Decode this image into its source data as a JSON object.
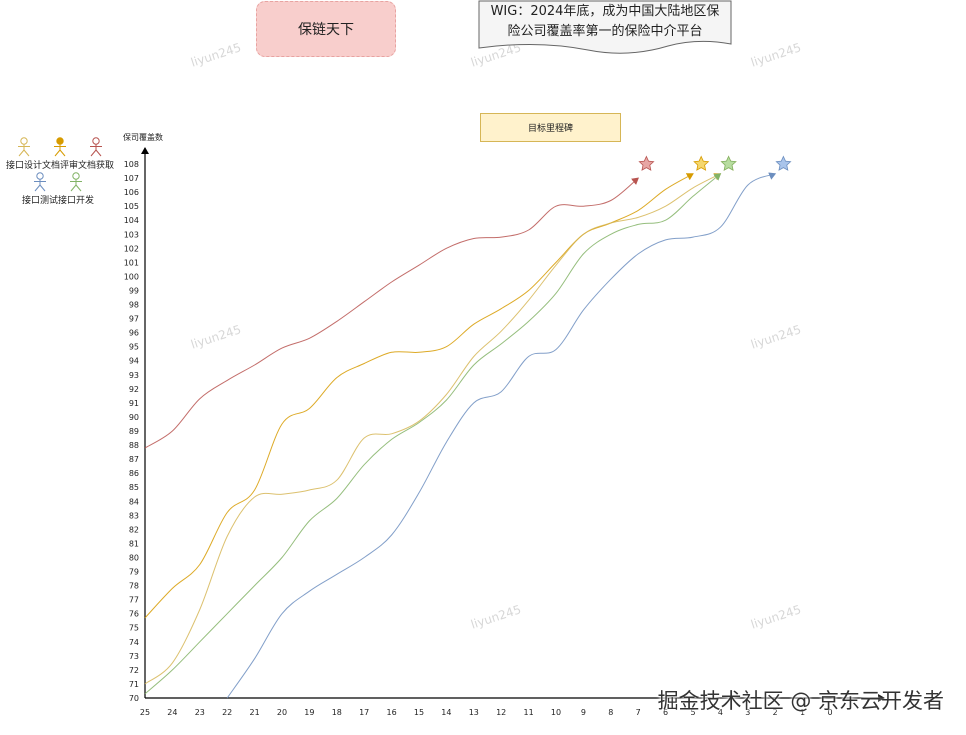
{
  "header": {
    "title": "保链天下",
    "wig_line1": "WIG：2024年底，成为中国大陆地区保",
    "wig_line2": "险公司覆盖率第一的保险中介平台"
  },
  "milestone_label": "目标里程碑",
  "legend": [
    {
      "label": "接口设计",
      "color": "#d6b656"
    },
    {
      "label": "文档评审",
      "color": "#d79b00"
    },
    {
      "label": "文档获取",
      "color": "#b85450"
    },
    {
      "label": "接口测试",
      "color": "#6c8ebf"
    },
    {
      "label": "接口开发",
      "color": "#82b366"
    }
  ],
  "watermark_text": "liyun245",
  "footer_watermark": "掘金技术社区 @ 京东云开发者",
  "chart_data": {
    "type": "line",
    "ylabel": "保司覆盖数",
    "xlabel": "",
    "x_ticks": [
      25,
      24,
      23,
      22,
      21,
      20,
      19,
      18,
      17,
      16,
      15,
      14,
      13,
      12,
      11,
      10,
      9,
      8,
      7,
      6,
      5,
      4,
      3,
      2,
      1,
      0
    ],
    "ylim": [
      70,
      108
    ],
    "series": [
      {
        "name": "文档获取",
        "color": "#b85450",
        "star_color": "#e7a6a4",
        "points": [
          [
            25,
            87.8
          ],
          [
            24,
            89
          ],
          [
            23,
            91.3
          ],
          [
            22,
            92.6
          ],
          [
            21,
            93.7
          ],
          [
            20,
            94.9
          ],
          [
            19,
            95.6
          ],
          [
            18,
            96.8
          ],
          [
            17,
            98.2
          ],
          [
            16,
            99.6
          ],
          [
            15,
            100.8
          ],
          [
            14,
            102
          ],
          [
            13,
            102.7
          ],
          [
            12,
            102.8
          ],
          [
            11,
            103.3
          ],
          [
            10,
            105
          ],
          [
            9,
            105
          ],
          [
            8,
            105.4
          ],
          [
            7,
            107
          ]
        ]
      },
      {
        "name": "文档评审",
        "color": "#d79b00",
        "star_color": "#f5d76e",
        "points": [
          [
            25,
            75.7
          ],
          [
            24,
            77.8
          ],
          [
            23,
            79.5
          ],
          [
            22,
            83.2
          ],
          [
            21,
            84.8
          ],
          [
            20,
            89.5
          ],
          [
            19,
            90.6
          ],
          [
            18,
            92.8
          ],
          [
            17,
            93.8
          ],
          [
            16,
            94.6
          ],
          [
            15,
            94.6
          ],
          [
            14,
            95
          ],
          [
            13,
            96.6
          ],
          [
            12,
            97.7
          ],
          [
            11,
            99
          ],
          [
            10,
            101
          ],
          [
            9,
            103
          ],
          [
            8,
            103.8
          ],
          [
            7,
            104.7
          ],
          [
            6,
            106.2
          ],
          [
            5,
            107.3
          ]
        ]
      },
      {
        "name": "接口设计",
        "color": "#d6b656",
        "star_color": "#fbe6b6",
        "points": [
          [
            25,
            71
          ],
          [
            24,
            72.5
          ],
          [
            23,
            76.3
          ],
          [
            22,
            81.5
          ],
          [
            21,
            84.3
          ],
          [
            20,
            84.5
          ],
          [
            19,
            84.8
          ],
          [
            18,
            85.5
          ],
          [
            17,
            88.5
          ],
          [
            16,
            88.8
          ],
          [
            15,
            89.7
          ],
          [
            14,
            91.6
          ],
          [
            13,
            94.3
          ],
          [
            12,
            96.1
          ],
          [
            11,
            98.3
          ],
          [
            10,
            100.8
          ],
          [
            9,
            103
          ],
          [
            8,
            103.8
          ],
          [
            7,
            104.2
          ],
          [
            6,
            105
          ],
          [
            5,
            106.3
          ],
          [
            4,
            107.3
          ]
        ]
      },
      {
        "name": "接口开发",
        "color": "#82b366",
        "star_color": "#b8dda0",
        "points": [
          [
            25,
            70.3
          ],
          [
            24,
            72
          ],
          [
            23,
            74
          ],
          [
            22,
            76
          ],
          [
            21,
            78
          ],
          [
            20,
            80
          ],
          [
            19,
            82.6
          ],
          [
            18,
            84.2
          ],
          [
            17,
            86.6
          ],
          [
            16,
            88.4
          ],
          [
            15,
            89.6
          ],
          [
            14,
            91.2
          ],
          [
            13,
            93.7
          ],
          [
            12,
            95.2
          ],
          [
            11,
            96.8
          ],
          [
            10,
            98.8
          ],
          [
            9,
            101.6
          ],
          [
            8,
            103
          ],
          [
            7,
            103.7
          ],
          [
            6,
            104
          ],
          [
            5,
            105.7
          ],
          [
            4,
            107.3
          ]
        ]
      },
      {
        "name": "接口测试",
        "color": "#6c8ebf",
        "star_color": "#a9c4eb",
        "points": [
          [
            22,
            70
          ],
          [
            21,
            72.8
          ],
          [
            20,
            76
          ],
          [
            19,
            77.6
          ],
          [
            18,
            78.8
          ],
          [
            17,
            80
          ],
          [
            16,
            81.6
          ],
          [
            15,
            84.6
          ],
          [
            14,
            88.2
          ],
          [
            13,
            91
          ],
          [
            12,
            91.8
          ],
          [
            11,
            94.3
          ],
          [
            10,
            94.8
          ],
          [
            9,
            97.6
          ],
          [
            8,
            99.8
          ],
          [
            7,
            101.6
          ],
          [
            6,
            102.6
          ],
          [
            5,
            102.8
          ],
          [
            4,
            103.5
          ],
          [
            3,
            106.5
          ],
          [
            2,
            107.3
          ]
        ]
      }
    ]
  }
}
